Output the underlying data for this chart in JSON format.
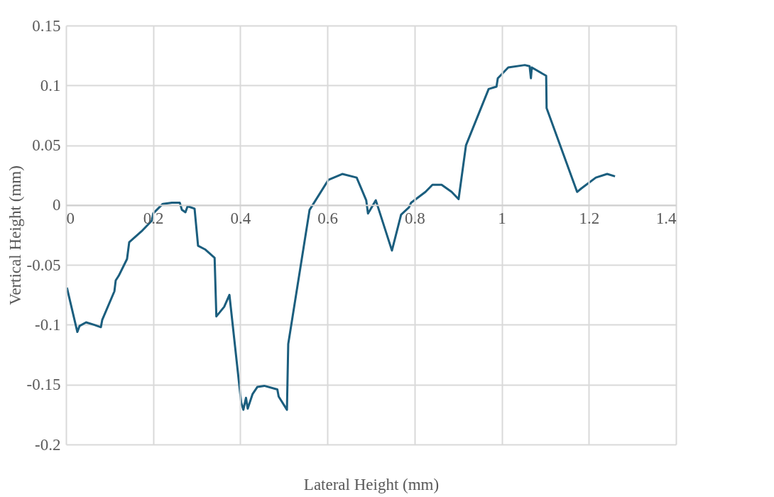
{
  "chart_data": {
    "type": "line",
    "xlabel": "Lateral Height (mm)",
    "ylabel": "Vertical Height (mm)",
    "xlim": [
      0,
      1.4
    ],
    "xticks": [
      0,
      0.2,
      0.4,
      0.6,
      0.8,
      1,
      1.2,
      1.4
    ],
    "ylim": [
      -0.2,
      0.15
    ],
    "yticks": [
      -0.2,
      -0.15,
      -0.1,
      -0.05,
      0,
      0.05,
      0.1,
      0.15
    ],
    "grid": true,
    "marker": "none",
    "line_style": "solid",
    "series": [
      {
        "color": "#1b5e7e",
        "x": [
          0.002,
          0.026,
          0.031,
          0.046,
          0.064,
          0.08,
          0.083,
          0.111,
          0.114,
          0.121,
          0.14,
          0.145,
          0.173,
          0.197,
          0.2,
          0.222,
          0.243,
          0.261,
          0.266,
          0.274,
          0.279,
          0.295,
          0.303,
          0.319,
          0.341,
          0.345,
          0.363,
          0.375,
          0.402,
          0.407,
          0.413,
          0.417,
          0.428,
          0.439,
          0.455,
          0.485,
          0.488,
          0.507,
          0.51,
          0.559,
          0.602,
          0.634,
          0.667,
          0.689,
          0.693,
          0.711,
          0.748,
          0.769,
          0.787,
          0.792,
          0.825,
          0.841,
          0.862,
          0.885,
          0.901,
          0.918,
          0.97,
          0.988,
          0.991,
          1.015,
          1.053,
          1.064,
          1.067,
          1.069,
          1.102,
          1.103,
          1.173,
          1.183,
          1.216,
          1.242,
          1.26
        ],
        "values": [
          -0.069,
          -0.106,
          -0.101,
          -0.098,
          -0.1,
          -0.102,
          -0.096,
          -0.072,
          -0.063,
          -0.059,
          -0.045,
          -0.031,
          -0.022,
          -0.013,
          -0.007,
          0.001,
          0.002,
          0.002,
          -0.004,
          -0.006,
          -0.001,
          -0.003,
          -0.034,
          -0.037,
          -0.044,
          -0.093,
          -0.085,
          -0.075,
          -0.165,
          -0.171,
          -0.161,
          -0.17,
          -0.158,
          -0.152,
          -0.151,
          -0.154,
          -0.16,
          -0.171,
          -0.116,
          -0.004,
          0.021,
          0.026,
          0.023,
          0.004,
          -0.007,
          0.004,
          -0.038,
          -0.008,
          -0.002,
          0.002,
          0.011,
          0.017,
          0.017,
          0.011,
          0.005,
          0.05,
          0.097,
          0.099,
          0.106,
          0.115,
          0.117,
          0.116,
          0.106,
          0.115,
          0.108,
          0.081,
          0.011,
          0.014,
          0.023,
          0.026,
          0.024
        ]
      }
    ]
  }
}
